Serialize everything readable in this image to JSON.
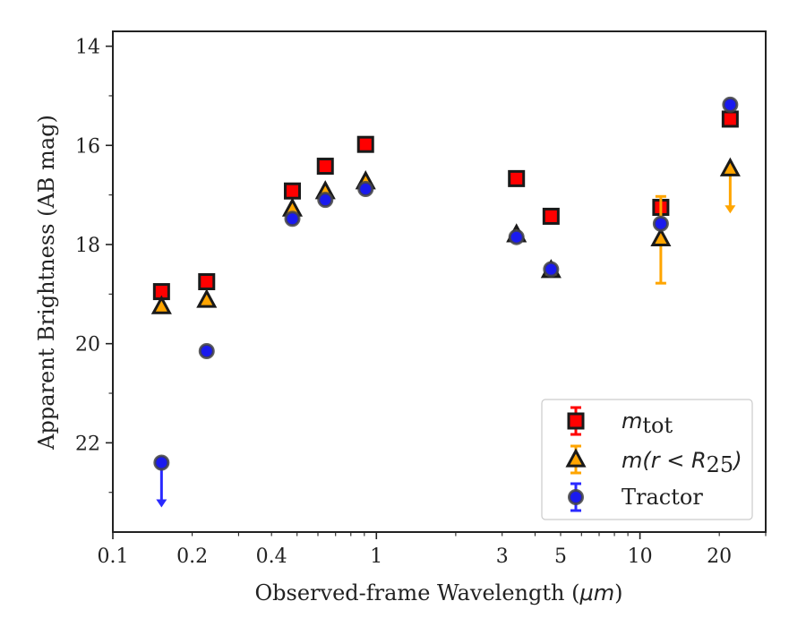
{
  "chart_data": {
    "type": "scatter",
    "xlabel_prefix": "Observed-frame Wavelength (",
    "xlabel_unit_math": "μm",
    "xlabel_suffix": ")",
    "ylabel": "Apparent Brightness (AB mag)",
    "x_scale": "log",
    "xlim": [
      0.1,
      30
    ],
    "ylim": [
      23.8,
      13.7
    ],
    "y_inverted": true,
    "grid": false,
    "legend_position": "lower-right",
    "x_ticks": [
      {
        "value": 0.1,
        "label": "0.1"
      },
      {
        "value": 0.2,
        "label": "0.2"
      },
      {
        "value": 0.4,
        "label": "0.4"
      },
      {
        "value": 1,
        "label": "1"
      },
      {
        "value": 3,
        "label": "3"
      },
      {
        "value": 5,
        "label": "5"
      },
      {
        "value": 10,
        "label": "10"
      },
      {
        "value": 20,
        "label": "20"
      }
    ],
    "y_ticks": [
      14,
      16,
      18,
      20,
      22
    ],
    "series": [
      {
        "key": "mtot",
        "name": "m_tot",
        "marker": "square",
        "color": "#ff0000",
        "edge": "#1a1a1a",
        "errcolor": "#ff0000",
        "points": [
          {
            "x": 0.153,
            "y": 18.95
          },
          {
            "x": 0.227,
            "y": 18.75
          },
          {
            "x": 0.48,
            "y": 16.92
          },
          {
            "x": 0.64,
            "y": 16.42
          },
          {
            "x": 0.91,
            "y": 15.98
          },
          {
            "x": 3.4,
            "y": 16.67
          },
          {
            "x": 4.6,
            "y": 17.43
          },
          {
            "x": 12.0,
            "y": 17.25
          },
          {
            "x": 22.0,
            "y": 15.47
          }
        ]
      },
      {
        "key": "mr25",
        "name": "m(r < R25)",
        "marker": "triangle",
        "color": "#ffa500",
        "edge": "#1a1a1a",
        "errcolor": "#ffa500",
        "points": [
          {
            "x": 0.153,
            "y": 19.25
          },
          {
            "x": 0.227,
            "y": 19.12
          },
          {
            "x": 0.48,
            "y": 17.28
          },
          {
            "x": 0.64,
            "y": 16.93
          },
          {
            "x": 0.91,
            "y": 16.73
          },
          {
            "x": 3.4,
            "y": 17.8
          },
          {
            "x": 4.6,
            "y": 18.52
          },
          {
            "x": 12.0,
            "y": 17.88,
            "yerr": [
              0.85,
              0.9
            ]
          },
          {
            "x": 22.0,
            "y": 16.47,
            "upper_limit": true
          }
        ]
      },
      {
        "key": "tractor",
        "name": "Tractor",
        "marker": "circle",
        "color": "#1a1aee",
        "edge": "#444444",
        "errcolor": "#2a2aff",
        "points": [
          {
            "x": 0.153,
            "y": 22.4,
            "upper_limit": true
          },
          {
            "x": 0.227,
            "y": 20.15
          },
          {
            "x": 0.48,
            "y": 17.48
          },
          {
            "x": 0.64,
            "y": 17.1
          },
          {
            "x": 0.91,
            "y": 16.88
          },
          {
            "x": 3.4,
            "y": 17.85
          },
          {
            "x": 4.6,
            "y": 18.5
          },
          {
            "x": 12.0,
            "y": 17.58
          },
          {
            "x": 22.0,
            "y": 15.18
          }
        ]
      }
    ],
    "legend": {
      "mtot": {
        "base": "m",
        "sub": "tot"
      },
      "mr25": {
        "base": "m(r < R",
        "sub": "25",
        "close": ")"
      },
      "tractor": {
        "label": "Tractor"
      }
    }
  }
}
